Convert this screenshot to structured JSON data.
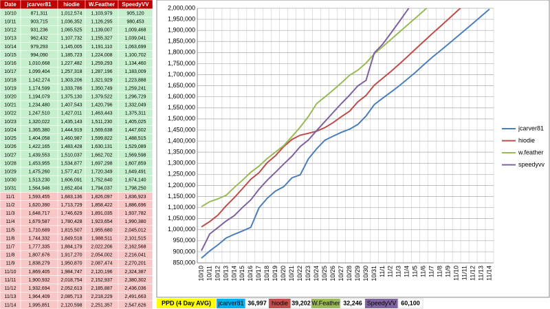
{
  "table": {
    "headers": [
      "Date",
      "jcarver81",
      "hiodie",
      "W.Feather",
      "SpeedyVV"
    ]
  },
  "chart_data": {
    "type": "line",
    "categories": [
      "10/10",
      "10/11",
      "10/12",
      "10/13",
      "10/14",
      "10/15",
      "10/16",
      "10/17",
      "10/18",
      "10/19",
      "10/20",
      "10/21",
      "10/22",
      "10/23",
      "10/24",
      "10/25",
      "10/26",
      "10/27",
      "10/28",
      "10/29",
      "10/30",
      "10/31",
      "11/1",
      "11/2",
      "11/3",
      "11/4",
      "11/5",
      "11/6",
      "11/7",
      "11/8",
      "11/9",
      "11/10",
      "11/11",
      "11/12",
      "11/13",
      "11/14"
    ],
    "series": [
      {
        "name": "jcarver81",
        "color": "#4a7ebb",
        "values": [
          871311,
          903715,
          931236,
          962432,
          979293,
          994090,
          1010668,
          1099404,
          1142274,
          1174599,
          1194079,
          1234480,
          1247510,
          1320022,
          1365380,
          1404058,
          1422165,
          1439553,
          1453955,
          1475260,
          1513230,
          1564946,
          1593455,
          1620390,
          1648717,
          1679587,
          1710689,
          1744332,
          1777335,
          1807676,
          1838279,
          1869405,
          1900932,
          1932694,
          1964409,
          1995851
        ],
        "value_labels": [
          "871,311",
          "903,715",
          "931,236",
          "962,432",
          "979,293",
          "994,090",
          "1,010,668",
          "1,099,404",
          "1,142,274",
          "1,174,599",
          "1,194,079",
          "1,234,480",
          "1,247,510",
          "1,320,022",
          "1,365,380",
          "1,404,058",
          "1,422,165",
          "1,439,553",
          "1,453,955",
          "1,475,260",
          "1,513,230",
          "1,564,946",
          "1,593,455",
          "1,620,390",
          "1,648,717",
          "1,679,587",
          "1,710,689",
          "1,744,332",
          "1,777,335",
          "1,807,676",
          "1,838,279",
          "1,869,405",
          "1,900,932",
          "1,932,694",
          "1,964,409",
          "1,995,851"
        ]
      },
      {
        "name": "hiodie",
        "color": "#be4b48",
        "values": [
          1012574,
          1036352,
          1065525,
          1107732,
          1145005,
          1185723,
          1227482,
          1257318,
          1303206,
          1333786,
          1375130,
          1407543,
          1427011,
          1435143,
          1444919,
          1460987,
          1483428,
          1510037,
          1534877,
          1577417,
          1606091,
          1652404,
          1683136,
          1713729,
          1746629,
          1780428,
          1815507,
          1849518,
          1884179,
          1917270,
          1950870,
          1984747,
          2018754,
          2052613,
          2085713,
          2120598
        ],
        "value_labels": [
          "1,012,574",
          "1,036,352",
          "1,065,525",
          "1,107,732",
          "1,145,005",
          "1,185,723",
          "1,227,482",
          "1,257,318",
          "1,303,206",
          "1,333,786",
          "1,375,130",
          "1,407,543",
          "1,427,011",
          "1,435,143",
          "1,444,919",
          "1,460,987",
          "1,483,428",
          "1,510,037",
          "1,534,877",
          "1,577,417",
          "1,606,091",
          "1,652,404",
          "1,683,136",
          "1,713,729",
          "1,746,629",
          "1,780,428",
          "1,815,507",
          "1,849,518",
          "1,884,179",
          "1,917,270",
          "1,950,870",
          "1,984,747",
          "2,018,754",
          "2,052,613",
          "2,085,713",
          "2,120,598"
        ]
      },
      {
        "name": "w.feather",
        "color": "#98b954",
        "values": [
          1103979,
          1126295,
          1139007,
          1155327,
          1191110,
          1224008,
          1259293,
          1287196,
          1321929,
          1350749,
          1379522,
          1420796,
          1463443,
          1511230,
          1569638,
          1599822,
          1630131,
          1662702,
          1697298,
          1720349,
          1752640,
          1794037,
          1826097,
          1858422,
          1891035,
          1923654,
          1955680,
          1988511,
          2022206,
          2054002,
          2087474,
          2120196,
          2152937,
          2185887,
          2218229,
          2251357
        ],
        "value_labels": [
          "1,103,979",
          "1,126,295",
          "1,139,007",
          "1,155,327",
          "1,191,110",
          "1,224,008",
          "1,259,293",
          "1,287,196",
          "1,321,929",
          "1,350,749",
          "1,379,522",
          "1,420,796",
          "1,463,443",
          "1,511,230",
          "1,569,638",
          "1,599,822",
          "1,630,131",
          "1,662,702",
          "1,697,298",
          "1,720,349",
          "1,752,640",
          "1,794,037",
          "1,826,097",
          "1,858,422",
          "1,891,035",
          "1,923,654",
          "1,955,680",
          "1,988,511",
          "2,022,206",
          "2,054,002",
          "2,087,474",
          "2,120,196",
          "2,152,937",
          "2,185,887",
          "2,218,229",
          "2,251,357"
        ]
      },
      {
        "name": "speedyvv",
        "color": "#7d60a0",
        "values": [
          905120,
          980453,
          1009468,
          1039041,
          1063699,
          1100702,
          1134460,
          1183009,
          1223888,
          1259241,
          1296729,
          1332049,
          1375311,
          1405025,
          1447602,
          1488515,
          1529089,
          1569598,
          1607859,
          1649491,
          1674140,
          1798250,
          1836923,
          1886696,
          1937782,
          1990380,
          2045012,
          2101515,
          2162568,
          2216041,
          2270201,
          2324387,
          2380302,
          2436036,
          2491663,
          2547626
        ],
        "value_labels": [
          "905,120",
          "980,453",
          "1,009,468",
          "1,039,041",
          "1,063,699",
          "1,100,702",
          "1,134,460",
          "1,183,009",
          "1,223,888",
          "1,259,241",
          "1,296,729",
          "1,332,049",
          "1,375,311",
          "1,405,025",
          "1,447,602",
          "1,488,515",
          "1,529,089",
          "1,569,598",
          "1,607,859",
          "1,649,491",
          "1,674,140",
          "1,798,250",
          "1,836,923",
          "1,886,696",
          "1,937,782",
          "1,990,380",
          "2,045,012",
          "2,101,515",
          "2,162,568",
          "2,216,041",
          "2,270,201",
          "2,324,387",
          "2,380,302",
          "2,436,036",
          "2,491,663",
          "2,547,626"
        ]
      }
    ],
    "ylim": [
      850000,
      2000000
    ],
    "yticks": [
      {
        "value": 850000,
        "label": "850,000"
      },
      {
        "value": 900000,
        "label": "900,000"
      },
      {
        "value": 950000,
        "label": "950,000"
      },
      {
        "value": 1000000,
        "label": "1,000,000"
      },
      {
        "value": 1050000,
        "label": "1,050,000"
      },
      {
        "value": 1100000,
        "label": "1,100,000"
      },
      {
        "value": 1150000,
        "label": "1,150,000"
      },
      {
        "value": 1200000,
        "label": "1,200,000"
      },
      {
        "value": 1250000,
        "label": "1,250,000"
      },
      {
        "value": 1300000,
        "label": "1,300,000"
      },
      {
        "value": 1350000,
        "label": "1,350,000"
      },
      {
        "value": 1400000,
        "label": "1,400,000"
      },
      {
        "value": 1450000,
        "label": "1,450,000"
      },
      {
        "value": 1500000,
        "label": "1,500,000"
      },
      {
        "value": 1550000,
        "label": "1,550,000"
      },
      {
        "value": 1600000,
        "label": "1,600,000"
      },
      {
        "value": 1650000,
        "label": "1,650,000"
      },
      {
        "value": 1700000,
        "label": "1,700,000"
      },
      {
        "value": 1750000,
        "label": "1,750,000"
      },
      {
        "value": 1800000,
        "label": "1,800,000"
      },
      {
        "value": 1850000,
        "label": "1,850,000"
      },
      {
        "value": 1900000,
        "label": "1,900,000"
      },
      {
        "value": 1950000,
        "label": "1,950,000"
      },
      {
        "value": 2000000,
        "label": "2,000,000"
      }
    ],
    "grid": true,
    "legend": "right"
  },
  "footer": {
    "label": "PPD (4 Day AVG)",
    "items": [
      {
        "name": "jcarver81",
        "value": "36,997",
        "color": "#00b0f0"
      },
      {
        "name": "hiodie",
        "value": "39,202",
        "color": "#c0504d"
      },
      {
        "name": "W.Feather",
        "value": "32,246",
        "color": "#9bbb59"
      },
      {
        "name": "SpeedyVV",
        "value": "60,100",
        "color": "#8064a2"
      }
    ]
  }
}
